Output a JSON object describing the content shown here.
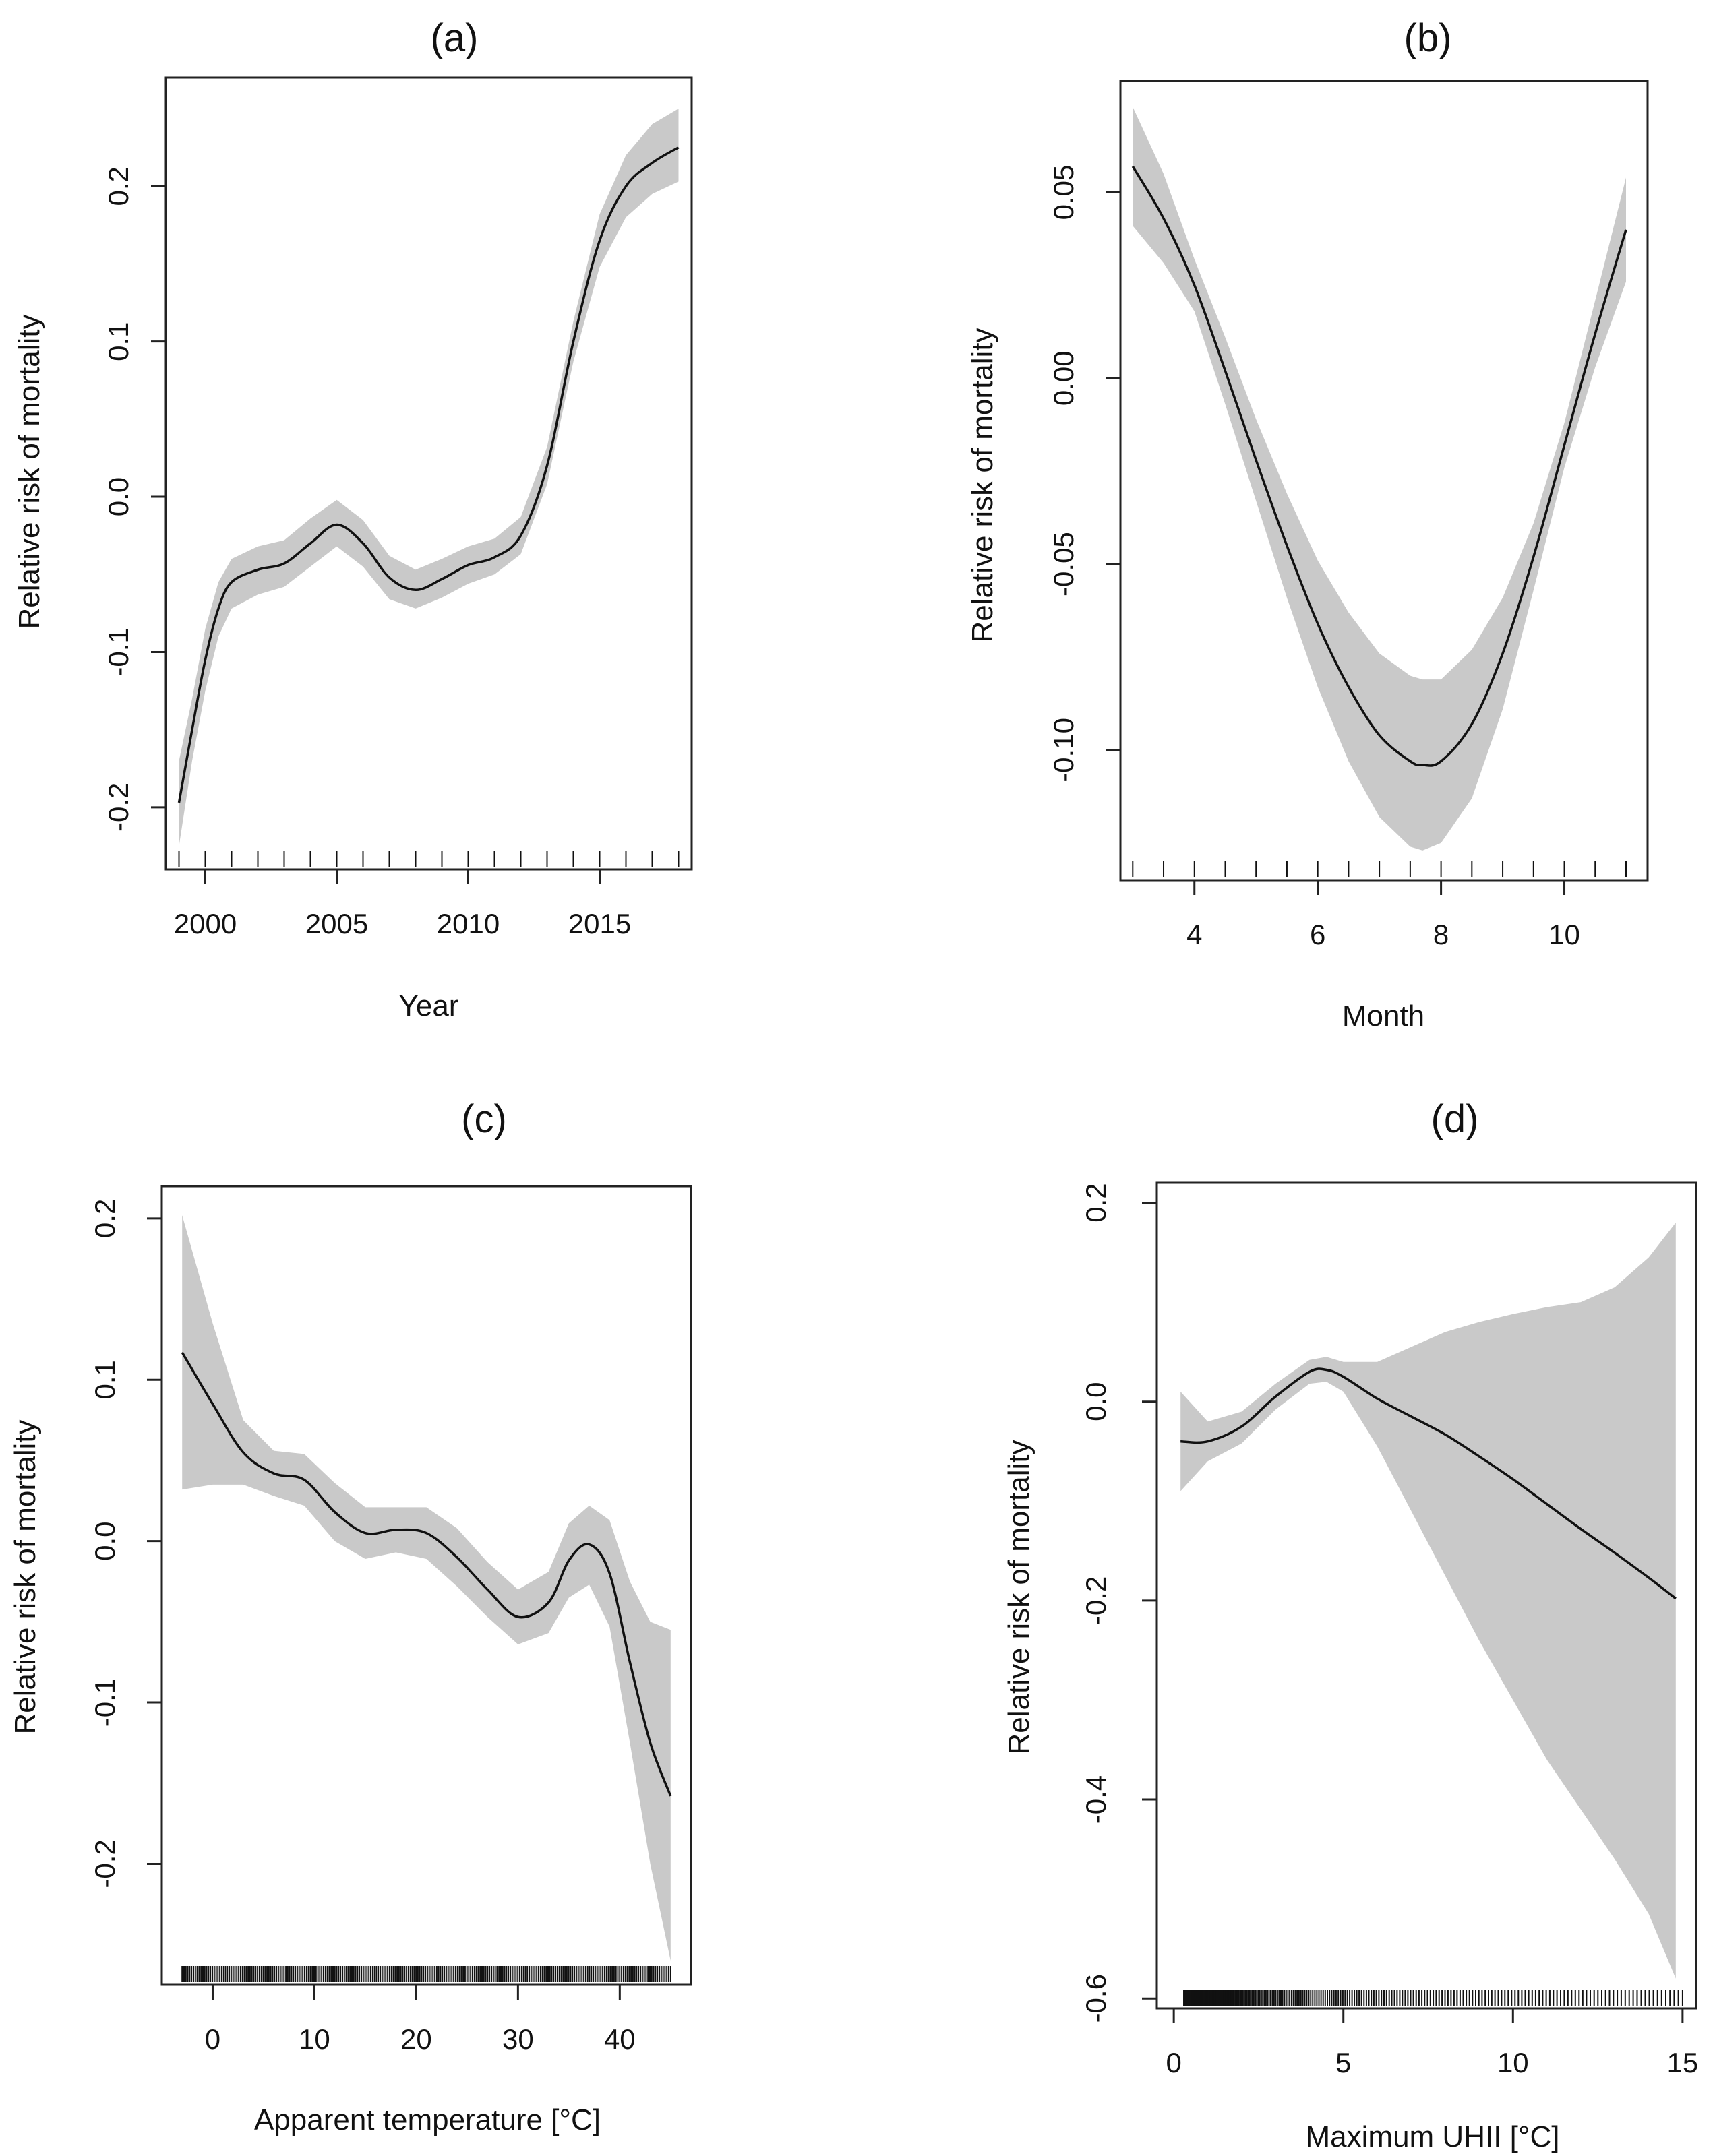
{
  "chart_data": [
    {
      "type": "line",
      "panel": "(a)",
      "title": "(a)",
      "xlabel": "Year",
      "ylabel": "Relative risk of mortality",
      "xlim": [
        1998.5,
        2018.5
      ],
      "ylim": [
        -0.24,
        0.27
      ],
      "xticks": [
        2000,
        2005,
        2010,
        2015
      ],
      "xtick_labels": [
        "2000",
        "2005",
        "2010",
        "2015"
      ],
      "yticks": [
        -0.2,
        -0.1,
        0.0,
        0.1,
        0.2
      ],
      "ytick_labels": [
        "-0.2",
        "-0.1",
        "0.0",
        "0.1",
        "0.2"
      ],
      "x": [
        1999,
        1999.5,
        2000,
        2000.5,
        2001,
        2002,
        2003,
        2004,
        2005,
        2006,
        2007,
        2008,
        2009,
        2010,
        2011,
        2012,
        2013,
        2014,
        2015,
        2016,
        2017,
        2018
      ],
      "series": [
        {
          "name": "estimate",
          "values": [
            -0.197,
            -0.15,
            -0.105,
            -0.072,
            -0.055,
            -0.047,
            -0.043,
            -0.03,
            -0.018,
            -0.03,
            -0.052,
            -0.06,
            -0.053,
            -0.044,
            -0.039,
            -0.025,
            0.02,
            0.1,
            0.165,
            0.2,
            0.215,
            0.225
          ]
        },
        {
          "name": "lower",
          "values": [
            -0.225,
            -0.17,
            -0.125,
            -0.09,
            -0.072,
            -0.063,
            -0.058,
            -0.045,
            -0.032,
            -0.045,
            -0.066,
            -0.072,
            -0.065,
            -0.056,
            -0.05,
            -0.037,
            0.008,
            0.087,
            0.148,
            0.18,
            0.195,
            0.203
          ]
        },
        {
          "name": "upper",
          "values": [
            -0.17,
            -0.13,
            -0.085,
            -0.055,
            -0.04,
            -0.032,
            -0.028,
            -0.014,
            -0.002,
            -0.015,
            -0.038,
            -0.047,
            -0.04,
            -0.032,
            -0.027,
            -0.013,
            0.032,
            0.113,
            0.182,
            0.22,
            0.24,
            0.25
          ]
        }
      ],
      "rug": [
        1999,
        2000,
        2001,
        2002,
        2003,
        2004,
        2005,
        2006,
        2007,
        2008,
        2009,
        2010,
        2011,
        2012,
        2013,
        2014,
        2015,
        2016,
        2017,
        2018
      ]
    },
    {
      "type": "line",
      "panel": "(b)",
      "title": "(b)",
      "xlabel": "Month",
      "ylabel": "Relative risk of mortality",
      "xlim": [
        2.8,
        11.35
      ],
      "ylim": [
        -0.135,
        0.08
      ],
      "xticks": [
        4,
        6,
        8,
        10
      ],
      "xtick_labels": [
        "4",
        "6",
        "8",
        "10"
      ],
      "yticks": [
        -0.1,
        -0.05,
        0.0,
        0.05
      ],
      "ytick_labels": [
        "-0.10",
        "-0.05",
        "0.00",
        "0.05"
      ],
      "x": [
        3,
        3.5,
        4,
        4.5,
        5,
        5.5,
        6,
        6.5,
        7,
        7.5,
        7.7,
        8,
        8.5,
        9,
        9.5,
        10,
        10.5,
        11
      ],
      "series": [
        {
          "name": "estimate",
          "values": [
            0.057,
            0.043,
            0.025,
            0.002,
            -0.022,
            -0.045,
            -0.066,
            -0.083,
            -0.096,
            -0.103,
            -0.104,
            -0.103,
            -0.093,
            -0.074,
            -0.048,
            -0.018,
            0.012,
            0.04
          ],
          "band_width": [
            0.016,
            0.012,
            0.007,
            0.009,
            0.011,
            0.014,
            0.017,
            0.02,
            0.022,
            0.023,
            0.023,
            0.022,
            0.02,
            0.015,
            0.009,
            0.006,
            0.009,
            0.014
          ]
        }
      ],
      "rug": [
        3,
        3.5,
        4,
        4.5,
        5,
        5.5,
        6,
        6.5,
        7,
        7.5,
        8,
        8.5,
        9,
        9.5,
        10,
        10.5,
        11
      ]
    },
    {
      "type": "line",
      "panel": "(c)",
      "title": "(c)",
      "xlabel": "Apparent temperature  [°C]",
      "ylabel": "Relative risk of mortality",
      "xlim": [
        -5,
        47
      ],
      "ylim": [
        -0.275,
        0.22
      ],
      "xticks": [
        0,
        10,
        20,
        30,
        40
      ],
      "xtick_labels": [
        "0",
        "10",
        "20",
        "30",
        "40"
      ],
      "yticks": [
        -0.2,
        -0.1,
        0.0,
        0.1,
        0.2
      ],
      "ytick_labels": [
        "-0.2",
        "-0.1",
        "0.0",
        "0.1",
        "0.2"
      ],
      "x": [
        -3,
        0,
        3,
        6,
        9,
        12,
        15,
        18,
        21,
        24,
        27,
        30,
        33,
        35,
        37,
        39,
        41,
        43,
        45
      ],
      "series": [
        {
          "name": "estimate",
          "values": [
            0.117,
            0.085,
            0.055,
            0.042,
            0.038,
            0.018,
            0.005,
            0.007,
            0.005,
            -0.01,
            -0.03,
            -0.047,
            -0.038,
            -0.012,
            -0.002,
            -0.02,
            -0.075,
            -0.125,
            -0.158
          ]
        },
        {
          "name": "lower",
          "values": [
            0.032,
            0.035,
            0.035,
            0.028,
            0.022,
            0.0,
            -0.011,
            -0.007,
            -0.011,
            -0.028,
            -0.047,
            -0.064,
            -0.057,
            -0.035,
            -0.027,
            -0.053,
            -0.125,
            -0.2,
            -0.26
          ]
        },
        {
          "name": "upper",
          "values": [
            0.202,
            0.135,
            0.075,
            0.056,
            0.054,
            0.036,
            0.021,
            0.021,
            0.021,
            0.008,
            -0.013,
            -0.03,
            -0.019,
            0.011,
            0.022,
            0.013,
            -0.025,
            -0.05,
            -0.055
          ]
        }
      ],
      "rug_range": [
        -3,
        45
      ]
    },
    {
      "type": "line",
      "panel": "(d)",
      "title": "(d)",
      "xlabel": "Maximum UHII  [°C]",
      "ylabel": "Relative risk of mortality",
      "xlim": [
        -0.5,
        15.4
      ],
      "ylim": [
        -0.61,
        0.22
      ],
      "xticks": [
        0,
        5,
        10,
        15
      ],
      "xtick_labels": [
        "0",
        "5",
        "10",
        "15"
      ],
      "yticks": [
        -0.6,
        -0.4,
        -0.2,
        0.0,
        0.2
      ],
      "ytick_labels": [
        "-0.6",
        "-0.4",
        "-0.2",
        "0.0",
        "0.2"
      ],
      "x": [
        0.2,
        1,
        2,
        3,
        4,
        4.5,
        5,
        6,
        7,
        8,
        9,
        10,
        11,
        12,
        13,
        14,
        14.8
      ],
      "series": [
        {
          "name": "estimate",
          "values": [
            -0.04,
            -0.04,
            -0.025,
            0.005,
            0.03,
            0.032,
            0.025,
            0.003,
            -0.015,
            -0.033,
            -0.055,
            -0.078,
            -0.103,
            -0.128,
            -0.152,
            -0.177,
            -0.198
          ]
        },
        {
          "name": "lower",
          "values": [
            -0.09,
            -0.06,
            -0.042,
            -0.008,
            0.018,
            0.02,
            0.01,
            -0.045,
            -0.11,
            -0.175,
            -0.24,
            -0.3,
            -0.36,
            -0.41,
            -0.46,
            -0.515,
            -0.58
          ]
        },
        {
          "name": "upper",
          "values": [
            0.01,
            -0.02,
            -0.01,
            0.018,
            0.042,
            0.045,
            0.04,
            0.04,
            0.055,
            0.07,
            0.08,
            0.088,
            0.095,
            0.1,
            0.115,
            0.145,
            0.18
          ]
        }
      ],
      "rug_range": [
        0.3,
        15
      ]
    }
  ]
}
